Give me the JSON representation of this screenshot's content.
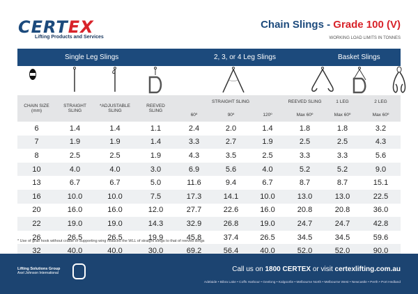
{
  "logo": {
    "brand_a": "CERT",
    "brand_b": "EX",
    "tagline": "Lifting Products and Services"
  },
  "title": {
    "main": "Chain Slings - ",
    "grade": "Grade 100 (V)",
    "subtitle": "WORKING LOAD LIMITS IN TONNES"
  },
  "band": {
    "single": "Single Leg Slings",
    "multi": "2, 3, or 4 Leg Slings",
    "basket": "Basket Slings"
  },
  "headers": {
    "chain_size": "CHAIN SIZE",
    "chain_unit": "(mm)",
    "straight": "STRAIGHT",
    "adjustable": "*ADJUSTABLE",
    "reeved": "REEVED",
    "sling": "SLING",
    "straight_sling": "STRAIGHT SLING",
    "a60": "60º",
    "a90": "90º",
    "a120": "120º",
    "reeved_sling": "REEVED SLING",
    "max60": "Max 60º",
    "leg1": "1 LEG",
    "leg2": "2 LEG"
  },
  "rows": [
    [
      "6",
      "1.4",
      "1.4",
      "1.1",
      "2.4",
      "2.0",
      "1.4",
      "1.8",
      "1.8",
      "3.2"
    ],
    [
      "7",
      "1.9",
      "1.9",
      "1.4",
      "3.3",
      "2.7",
      "1.9",
      "2.5",
      "2.5",
      "4.3"
    ],
    [
      "8",
      "2.5",
      "2.5",
      "1.9",
      "4.3",
      "3.5",
      "2.5",
      "3.3",
      "3.3",
      "5.6"
    ],
    [
      "10",
      "4.0",
      "4.0",
      "3.0",
      "6.9",
      "5.6",
      "4.0",
      "5.2",
      "5.2",
      "9.0"
    ],
    [
      "13",
      "6.7",
      "6.7",
      "5.0",
      "11.6",
      "9.4",
      "6.7",
      "8.7",
      "8.7",
      "15.1"
    ],
    [
      "16",
      "10.0",
      "10.0",
      "7.5",
      "17.3",
      "14.1",
      "10.0",
      "13.0",
      "13.0",
      "22.5"
    ],
    [
      "20",
      "16.0",
      "16.0",
      "12.0",
      "27.7",
      "22.6",
      "16.0",
      "20.8",
      "20.8",
      "36.0"
    ],
    [
      "22",
      "19.0",
      "19.0",
      "14.3",
      "32.9",
      "26.8",
      "19.0",
      "24.7",
      "24.7",
      "42.8"
    ],
    [
      "26",
      "26.5",
      "26.5",
      "19.9",
      "45.8",
      "37.4",
      "26.5",
      "34.5",
      "34.5",
      "59.6"
    ],
    [
      "32",
      "40.0",
      "40.0",
      "30.0",
      "69.2",
      "56.4",
      "40.0",
      "52.0",
      "52.0",
      "90.0"
    ]
  ],
  "footnote": "* Use of grab hook without cradle or supporting wing reduces the WLL of straight slings to that of reeved slings",
  "footer": {
    "group": "Lifting Solutions Group",
    "group_sub": "Axel Johnson International",
    "call_pre": "Call us on ",
    "phone": "1800 CERTEX",
    "call_mid": " or visit ",
    "site": "certexlifting.com.au",
    "locations": "Adelaide • Bibra Lake • Coffs Harbour • Geelong • Kalgoorlie • Melbourne North • Melbourne West • Newcastle • Perth • Port Hedland"
  }
}
